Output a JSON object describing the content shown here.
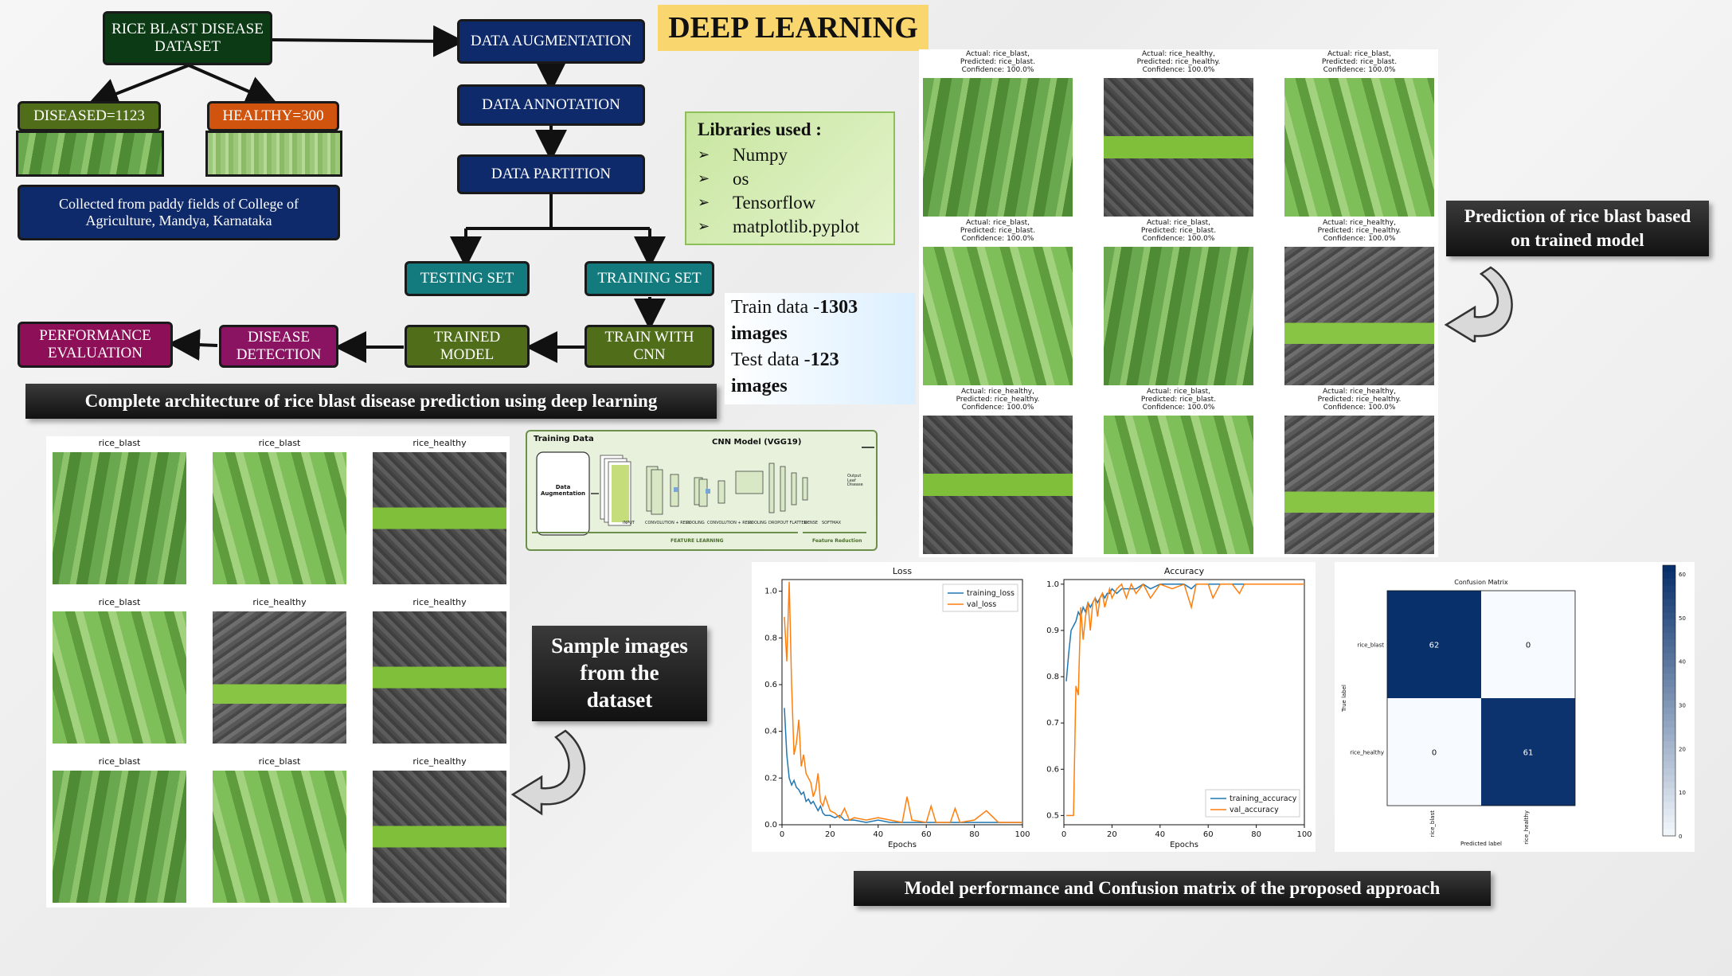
{
  "title": "DEEP LEARNING",
  "flow": {
    "dataset": "RICE BLAST DISEASE DATASET",
    "diseased": "DISEASED=1123",
    "healthy": "HEALTHY=300",
    "collected": "Collected from paddy fields of College of Agriculture, Mandya, Karnataka",
    "augmentation": "DATA AUGMENTATION",
    "annotation": "DATA ANNOTATION",
    "partition": "DATA PARTITION",
    "testing": "TESTING SET",
    "training": "TRAINING SET",
    "train_cnn": "TRAIN WITH CNN",
    "trained_model": "TRAINED MODEL",
    "disease_detection": "DISEASE DETECTION",
    "performance": "PERFORMANCE EVALUATION"
  },
  "libraries": {
    "heading": "Libraries used :",
    "items": [
      "Numpy",
      "os",
      "Tensorflow",
      "matplotlib.pyplot"
    ]
  },
  "split": {
    "train_prefix": "Train data -",
    "train_value": "1303",
    "train_suffix": "images",
    "test_prefix": "Test data -",
    "test_value": "123",
    "test_suffix": "images"
  },
  "banners": {
    "architecture": "Complete architecture of rice blast disease prediction using deep learning",
    "prediction": "Prediction of rice blast based on trained model",
    "samples": "Sample images from the dataset",
    "performance": "Model performance and Confusion matrix of the proposed approach"
  },
  "cnn": {
    "training_data": "Training Data",
    "augmentation": "Data Augmentation",
    "model": "CNN Model (VGG19)",
    "input": "INPUT",
    "conv1": "CONVOLUTION + RELU",
    "pool1": "POOLING",
    "conv2": "CONVOLUTION + RELU",
    "pool2": "POOLING",
    "dropout": "DROPOUT FLATTEN",
    "dense": "DENSE",
    "softmax": "SOFTMAX",
    "feature_learning": "FEATURE LEARNING",
    "feature_reduction": "Feature Reduction",
    "output": "Output Leaf Disease"
  },
  "samples": [
    "rice_blast",
    "rice_blast",
    "rice_healthy",
    "rice_blast",
    "rice_healthy",
    "rice_healthy",
    "rice_blast",
    "rice_blast",
    "rice_healthy"
  ],
  "predictions": [
    {
      "actual": "Actual: rice_blast,",
      "predicted": "Predicted: rice_blast.",
      "confidence": "Confidence: 100.0%"
    },
    {
      "actual": "Actual: rice_healthy,",
      "predicted": "Predicted: rice_healthy.",
      "confidence": "Confidence: 100.0%"
    },
    {
      "actual": "Actual: rice_blast,",
      "predicted": "Predicted: rice_blast.",
      "confidence": "Confidence: 100.0%"
    },
    {
      "actual": "Actual: rice_blast,",
      "predicted": "Predicted: rice_blast.",
      "confidence": "Confidence: 100.0%"
    },
    {
      "actual": "Actual: rice_blast,",
      "predicted": "Predicted: rice_blast.",
      "confidence": "Confidence: 100.0%"
    },
    {
      "actual": "Actual: rice_healthy,",
      "predicted": "Predicted: rice_healthy.",
      "confidence": "Confidence: 100.0%"
    },
    {
      "actual": "Actual: rice_healthy,",
      "predicted": "Predicted: rice_healthy.",
      "confidence": "Confidence: 100.0%"
    },
    {
      "actual": "Actual: rice_blast,",
      "predicted": "Predicted: rice_blast.",
      "confidence": "Confidence: 100.0%"
    },
    {
      "actual": "Actual: rice_healthy,",
      "predicted": "Predicted: rice_healthy.",
      "confidence": "Confidence: 100.0%"
    }
  ],
  "chart_data": [
    {
      "type": "line",
      "title": "Loss",
      "xlabel": "Epochs",
      "ylabel": "",
      "xlim": [
        0,
        100
      ],
      "ylim": [
        0,
        1.05
      ],
      "xticks": [
        0,
        20,
        40,
        60,
        80,
        100
      ],
      "yticks": [
        0.0,
        0.2,
        0.4,
        0.6,
        0.8,
        1.0
      ],
      "legend": "top-right",
      "x": [
        1,
        2,
        3,
        4,
        5,
        6,
        7,
        8,
        9,
        10,
        11,
        12,
        13,
        14,
        15,
        16,
        17,
        18,
        20,
        22,
        24,
        26,
        28,
        30,
        35,
        40,
        45,
        50,
        52,
        54,
        60,
        62,
        64,
        70,
        72,
        74,
        80,
        85,
        90,
        95,
        100
      ],
      "series": [
        {
          "name": "training_loss",
          "color": "#1f77b4",
          "values": [
            0.5,
            0.3,
            0.2,
            0.17,
            0.19,
            0.16,
            0.15,
            0.13,
            0.14,
            0.1,
            0.11,
            0.09,
            0.1,
            0.08,
            0.06,
            0.08,
            0.05,
            0.04,
            0.04,
            0.03,
            0.04,
            0.02,
            0.02,
            0.02,
            0.01,
            0.02,
            0.01,
            0.01,
            0.01,
            0.01,
            0.01,
            0.01,
            0.01,
            0.01,
            0.01,
            0.01,
            0.01,
            0.01,
            0.01,
            0.01,
            0.01
          ]
        },
        {
          "name": "val_loss",
          "color": "#ff7f0e",
          "values": [
            0.89,
            0.7,
            1.04,
            0.6,
            0.3,
            0.35,
            0.45,
            0.25,
            0.3,
            0.22,
            0.2,
            0.18,
            0.12,
            0.15,
            0.22,
            0.1,
            0.08,
            0.12,
            0.06,
            0.05,
            0.03,
            0.07,
            0.02,
            0.03,
            0.02,
            0.03,
            0.02,
            0.01,
            0.12,
            0.02,
            0.01,
            0.08,
            0.01,
            0.01,
            0.07,
            0.01,
            0.02,
            0.06,
            0.01,
            0.01,
            0.01
          ]
        }
      ]
    },
    {
      "type": "line",
      "title": "Accuracy",
      "xlabel": "Epochs",
      "ylabel": "",
      "xlim": [
        0,
        100
      ],
      "ylim": [
        0.48,
        1.01
      ],
      "xticks": [
        0,
        20,
        40,
        60,
        80,
        100
      ],
      "yticks": [
        0.5,
        0.6,
        0.7,
        0.8,
        0.9,
        1.0
      ],
      "legend": "bottom-right",
      "x": [
        1,
        2,
        3,
        4,
        5,
        6,
        7,
        8,
        9,
        10,
        11,
        12,
        13,
        14,
        15,
        16,
        17,
        18,
        19,
        20,
        22,
        24,
        26,
        28,
        30,
        33,
        36,
        40,
        45,
        50,
        53,
        55,
        60,
        62,
        65,
        70,
        73,
        75,
        80,
        85,
        90,
        95,
        100
      ],
      "series": [
        {
          "name": "training_accuracy",
          "color": "#1f77b4",
          "values": [
            0.79,
            0.85,
            0.9,
            0.91,
            0.92,
            0.94,
            0.93,
            0.95,
            0.94,
            0.96,
            0.95,
            0.96,
            0.97,
            0.96,
            0.97,
            0.98,
            0.97,
            0.98,
            0.98,
            0.99,
            0.98,
            0.99,
            0.99,
            0.99,
            0.99,
            1.0,
            0.99,
            1.0,
            1.0,
            1.0,
            0.99,
            1.0,
            1.0,
            1.0,
            1.0,
            1.0,
            1.0,
            1.0,
            1.0,
            1.0,
            1.0,
            1.0,
            1.0
          ]
        },
        {
          "name": "val_accuracy",
          "color": "#ff7f0e",
          "values": [
            0.5,
            0.5,
            0.5,
            0.5,
            0.78,
            0.76,
            0.95,
            0.88,
            0.93,
            0.96,
            0.9,
            0.96,
            0.97,
            0.93,
            0.97,
            0.98,
            0.95,
            0.97,
            0.99,
            0.97,
            0.99,
            1.0,
            0.97,
            1.0,
            0.98,
            1.0,
            0.97,
            1.0,
            0.99,
            1.0,
            0.95,
            1.0,
            1.0,
            0.97,
            1.0,
            1.0,
            0.98,
            1.0,
            1.0,
            1.0,
            1.0,
            1.0,
            1.0
          ]
        }
      ]
    },
    {
      "type": "heatmap",
      "title": "Confusion Matrix",
      "xlabel": "Predicted label",
      "ylabel": "True label",
      "rows": [
        "rice_blast",
        "rice_healthy"
      ],
      "cols": [
        "rice_blast",
        "rice_healthy"
      ],
      "values": [
        [
          62,
          0
        ],
        [
          0,
          61
        ]
      ],
      "colorbar_ticks": [
        0,
        10,
        20,
        30,
        40,
        50,
        60
      ],
      "colormap": "Blues"
    }
  ]
}
